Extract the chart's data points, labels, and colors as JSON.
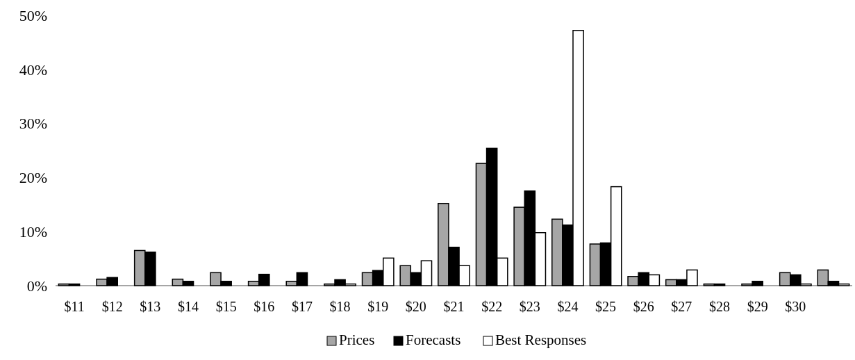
{
  "chart_data": {
    "type": "bar",
    "categories": [
      "$11",
      "$12",
      "$13",
      "$14",
      "$15",
      "$16",
      "$17",
      "$18",
      "$19",
      "$20",
      "$21",
      "$22",
      "$23",
      "$24",
      "$25",
      "$26",
      "$27",
      "$28",
      "$29",
      "$30",
      null
    ],
    "series": [
      {
        "name": "Prices",
        "color": "#a6a6a6",
        "values": [
          0.3,
          1.2,
          6.5,
          1.2,
          2.4,
          0.8,
          0.8,
          0.3,
          2.4,
          3.7,
          15.2,
          22.6,
          14.5,
          12.3,
          7.7,
          1.7,
          1.1,
          0.3,
          0.3,
          2.4,
          2.9
        ]
      },
      {
        "name": "Forecasts",
        "color": "#000000",
        "values": [
          0.3,
          1.5,
          6.2,
          0.8,
          0.8,
          2.1,
          2.4,
          1.1,
          2.8,
          2.4,
          7.1,
          25.4,
          17.5,
          11.2,
          7.9,
          2.4,
          1.1,
          0.3,
          0.8,
          2.0,
          0.8
        ]
      },
      {
        "name": "Best Responses",
        "color": "#ffffff",
        "values": [
          0,
          0,
          0,
          0,
          0,
          0,
          0,
          0.3,
          5.1,
          4.6,
          3.7,
          5.1,
          9.8,
          47.2,
          18.3,
          2.0,
          2.9,
          0,
          0,
          0.3,
          0.3
        ]
      }
    ],
    "ylim": [
      0,
      50
    ],
    "yticks": [
      {
        "value": 0,
        "label": "0%"
      },
      {
        "value": 10,
        "label": "10%"
      },
      {
        "value": 20,
        "label": "20%"
      },
      {
        "value": 30,
        "label": "30%"
      },
      {
        "value": 40,
        "label": "40%"
      },
      {
        "value": 50,
        "label": "50%"
      }
    ],
    "grid": false,
    "legend": "bottom"
  }
}
